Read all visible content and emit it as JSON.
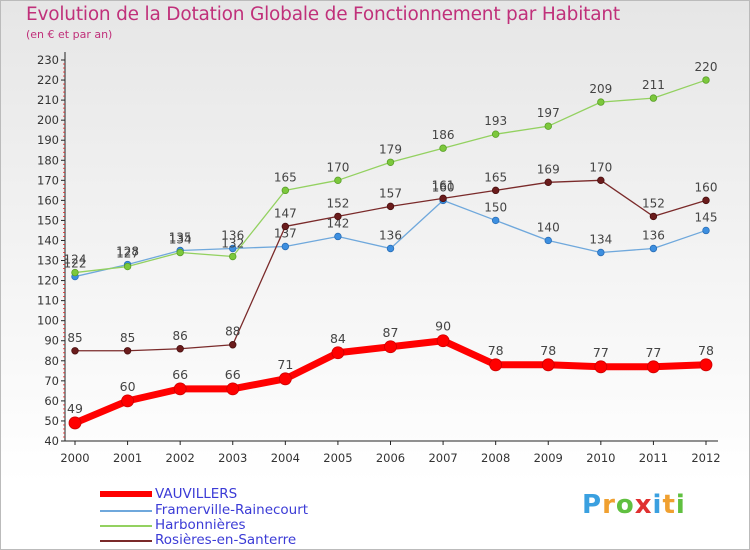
{
  "chart_data": {
    "type": "line",
    "title": "Evolution de la Dotation Globale de Fonctionnement par Habitant",
    "subtitle": "(en € et par an)",
    "xlabel": "",
    "ylabel": "",
    "x": [
      "2000",
      "2001",
      "2002",
      "2003",
      "2004",
      "2005",
      "2006",
      "2007",
      "2008",
      "2009",
      "2010",
      "2011",
      "2012"
    ],
    "ylim": [
      40,
      230
    ],
    "ytick_step": 10,
    "grid": false,
    "legend_position": "bottom-left",
    "series": [
      {
        "name": "VAUVILLERS",
        "color": "#ff0000",
        "values": [
          49,
          60,
          66,
          66,
          71,
          84,
          87,
          90,
          78,
          78,
          77,
          77,
          78
        ]
      },
      {
        "name": "Framerville-Rainecourt",
        "color": "#6fa8dc",
        "values": [
          122,
          128,
          135,
          136,
          137,
          142,
          136,
          160,
          150,
          140,
          134,
          136,
          145
        ]
      },
      {
        "name": "Harbonnières",
        "color": "#93d160",
        "values": [
          124,
          127,
          134,
          132,
          165,
          170,
          179,
          186,
          193,
          197,
          209,
          211,
          220
        ]
      },
      {
        "name": "Rosières-en-Santerre",
        "color": "#7a2a2a",
        "values": [
          85,
          85,
          86,
          88,
          147,
          152,
          157,
          161,
          165,
          169,
          170,
          152,
          160
        ]
      }
    ]
  },
  "brand": {
    "letters": [
      "P",
      "r",
      "o",
      "x",
      "i",
      "t",
      "i"
    ],
    "colors": [
      "#3aa0e0",
      "#f0a030",
      "#60c040",
      "#e03030",
      "#3aa0e0",
      "#f0a030",
      "#60c040"
    ]
  }
}
